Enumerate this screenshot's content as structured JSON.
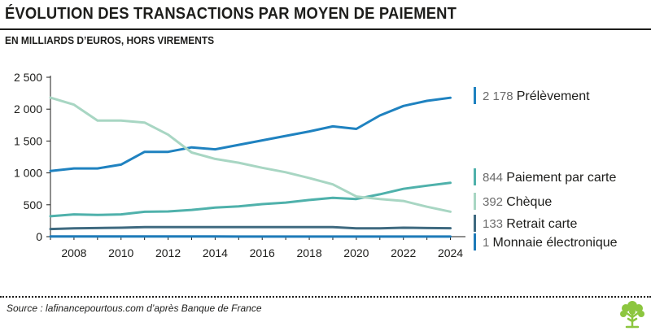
{
  "header": {
    "title": "ÉVOLUTION DES TRANSACTIONS PAR MOYEN DE PAIEMENT",
    "subtitle": "EN MILLIARDS D’EUROS, HORS VIREMENTS"
  },
  "footer": {
    "source": "Source : lafinancepourtous.com d’après Banque de France",
    "logo_icon": "tree-icon"
  },
  "chart_data": {
    "type": "line",
    "title": "ÉVOLUTION DES TRANSACTIONS PAR MOYEN DE PAIEMENT",
    "subtitle": "EN MILLIARDS D’EUROS, HORS VIREMENTS",
    "xlabel": "",
    "ylabel": "",
    "xlim": [
      2007,
      2024.5
    ],
    "ylim": [
      0,
      2500
    ],
    "yticks": [
      0,
      500,
      1000,
      1500,
      2000,
      2500
    ],
    "ytick_labels": [
      "0",
      "500",
      "1 000",
      "1 500",
      "2 000",
      "2 500"
    ],
    "xticks": [
      2008,
      2010,
      2012,
      2014,
      2016,
      2018,
      2020,
      2022,
      2024
    ],
    "xtick_labels": [
      "2008",
      "2010",
      "2012",
      "2014",
      "2016",
      "2018",
      "2020",
      "2022",
      "2024"
    ],
    "grid": false,
    "x": [
      2007,
      2008,
      2009,
      2010,
      2011,
      2012,
      2013,
      2014,
      2015,
      2016,
      2017,
      2018,
      2019,
      2020,
      2021,
      2022,
      2023,
      2024
    ],
    "series": [
      {
        "name": "Prélèvement",
        "end_label_value": "2 178",
        "color": "#1f82c0",
        "values": [
          1030,
          1070,
          1070,
          1130,
          1330,
          1330,
          1400,
          1370,
          1440,
          1510,
          1580,
          1650,
          1730,
          1690,
          1900,
          2050,
          2130,
          2178
        ]
      },
      {
        "name": "Paiement par carte",
        "end_label_value": "844",
        "color": "#4fb1ab",
        "values": [
          320,
          350,
          340,
          350,
          390,
          395,
          420,
          455,
          475,
          510,
          535,
          575,
          610,
          590,
          665,
          750,
          800,
          844
        ]
      },
      {
        "name": "Chèque",
        "end_label_value": "392",
        "color": "#a8d6c3",
        "values": [
          2180,
          2070,
          1820,
          1820,
          1790,
          1600,
          1320,
          1220,
          1160,
          1080,
          1010,
          920,
          820,
          630,
          590,
          560,
          470,
          392
        ]
      },
      {
        "name": "Retrait carte",
        "end_label_value": "133",
        "color": "#3f6a80",
        "values": [
          120,
          130,
          135,
          140,
          150,
          150,
          150,
          150,
          150,
          150,
          150,
          150,
          150,
          130,
          130,
          140,
          135,
          133
        ]
      },
      {
        "name": "Monnaie électronique",
        "end_label_value": "1",
        "color": "#1d7ab8",
        "values": [
          2,
          2,
          2,
          2,
          2,
          2,
          2,
          2,
          1,
          1,
          1,
          1,
          1,
          1,
          1,
          1,
          1,
          1
        ]
      }
    ]
  }
}
